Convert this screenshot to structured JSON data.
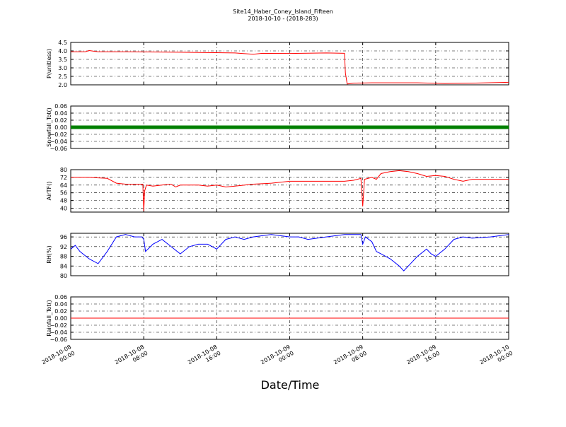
{
  "figure": {
    "title_line1": "Site14_Haber_Coney_Island_Fifteen",
    "title_line2": "2018-10-10 - (2018-283)",
    "xlabel": "Date/Time"
  },
  "x_ticks": [
    {
      "t": 0,
      "line1": "2018-10-08",
      "line2": "00:00"
    },
    {
      "t": 8,
      "line1": "2018-10-08",
      "line2": "08:00"
    },
    {
      "t": 16,
      "line1": "2018-10-08",
      "line2": "16:00"
    },
    {
      "t": 24,
      "line1": "2018-10-09",
      "line2": "00:00"
    },
    {
      "t": 32,
      "line1": "2018-10-09",
      "line2": "08:00"
    },
    {
      "t": 40,
      "line1": "2018-10-09",
      "line2": "16:00"
    },
    {
      "t": 48,
      "line1": "2018-10-10",
      "line2": "00:00"
    }
  ],
  "chart_data": [
    {
      "type": "line",
      "ylabel": "P(unitless)",
      "ylim": [
        2.0,
        4.5
      ],
      "yticks": [
        "2.0",
        "2.5",
        "3.0",
        "3.5",
        "4.0",
        "4.5"
      ],
      "grid": true,
      "series": [
        {
          "color": "#ff0000",
          "x": [
            0,
            1.6,
            2,
            3,
            6,
            12,
            18,
            20,
            21,
            24,
            28,
            30,
            30.1,
            30.3,
            31,
            33,
            35,
            38,
            41,
            44,
            48
          ],
          "y": [
            3.95,
            3.95,
            4.02,
            3.95,
            3.95,
            3.92,
            3.88,
            3.8,
            3.86,
            3.85,
            3.88,
            3.86,
            2.7,
            2.05,
            2.1,
            2.12,
            2.12,
            2.12,
            2.08,
            2.1,
            2.15
          ]
        }
      ]
    },
    {
      "type": "line",
      "ylabel": "Snowfall_Tot()",
      "ylim": [
        -0.06,
        0.06
      ],
      "yticks": [
        "−0.06",
        "−0.04",
        "−0.02",
        "0.00",
        "0.02",
        "0.04",
        "0.06"
      ],
      "grid": true,
      "series": [
        {
          "color": "#008000",
          "marker": true,
          "x": [
            0,
            48
          ],
          "y": [
            0,
            0
          ]
        }
      ]
    },
    {
      "type": "line",
      "ylabel": "AirTF()",
      "ylim": [
        36,
        80
      ],
      "yticks": [
        "40",
        "48",
        "56",
        "64",
        "72",
        "80"
      ],
      "grid": true,
      "series": [
        {
          "color": "#ff0000",
          "x": [
            0,
            2,
            4,
            5,
            6,
            7,
            7.9,
            8.0,
            8.1,
            8.3,
            9,
            10,
            11,
            11.5,
            12,
            13,
            14,
            15,
            16,
            17,
            18,
            20,
            22,
            24,
            26,
            28,
            29,
            30,
            31,
            31.8,
            32.0,
            32.2,
            33,
            33.5,
            34,
            35,
            36,
            37,
            38,
            39,
            40,
            41,
            42,
            43,
            44,
            46,
            48
          ],
          "y": [
            72,
            72,
            71,
            66,
            65,
            65,
            65,
            37,
            58,
            64,
            63,
            64,
            65,
            62,
            64,
            64,
            64,
            63,
            64,
            62,
            63,
            65,
            66,
            68,
            68,
            68,
            68,
            68,
            69,
            71,
            42,
            70,
            72,
            70,
            76,
            78,
            79,
            78,
            76,
            73,
            74,
            73,
            70,
            68,
            70,
            70,
            70
          ]
        }
      ]
    },
    {
      "type": "line",
      "ylabel": "RH(%)",
      "ylim": [
        80,
        97.5
      ],
      "yticks": [
        "80",
        "84",
        "88",
        "92",
        "96"
      ],
      "grid": true,
      "series": [
        {
          "color": "#0000ff",
          "x": [
            0,
            0.5,
            1,
            2,
            3,
            4,
            5,
            6,
            7,
            7.8,
            8.0,
            8.2,
            9,
            10,
            11,
            12,
            13,
            14,
            15,
            16,
            17,
            18,
            19,
            20,
            22,
            24,
            25,
            26,
            28,
            30,
            31,
            31.8,
            32.0,
            32.3,
            33,
            33.5,
            34,
            35,
            36,
            36.5,
            37,
            38,
            39,
            39.5,
            40,
            41,
            42,
            43,
            44,
            46,
            48
          ],
          "y": [
            91,
            92.5,
            90,
            87,
            85,
            90,
            96,
            97,
            96,
            96,
            95,
            90,
            93,
            95,
            92,
            89,
            92,
            93,
            93,
            91,
            95,
            96,
            95,
            96,
            97,
            96,
            96,
            95,
            96,
            97,
            97,
            97,
            93,
            96,
            94,
            90,
            89,
            87,
            84,
            82,
            84,
            88,
            91,
            89,
            88,
            91,
            95,
            96,
            95.5,
            96,
            97
          ]
        }
      ]
    },
    {
      "type": "line",
      "ylabel": "Rainfall_Tot()",
      "ylim": [
        -0.06,
        0.06
      ],
      "yticks": [
        "−0.06",
        "−0.04",
        "−0.02",
        "0.00",
        "0.02",
        "0.04",
        "0.06"
      ],
      "grid": true,
      "series": [
        {
          "color": "#ff0000",
          "x": [
            0,
            48
          ],
          "y": [
            0,
            0
          ]
        }
      ]
    }
  ]
}
